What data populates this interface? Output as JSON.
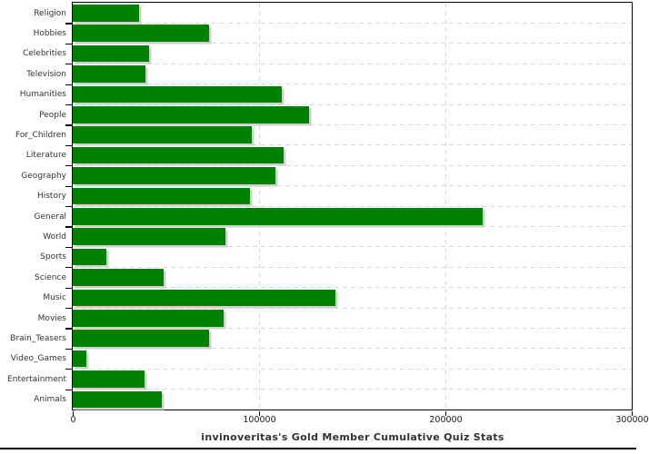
{
  "chart_data": {
    "type": "bar",
    "orientation": "horizontal",
    "title": "invinoveritas's Gold Member Cumulative Quiz Stats",
    "categories": [
      "Religion",
      "Hobbies",
      "Celebrities",
      "Television",
      "Humanities",
      "People",
      "For_Children",
      "Literature",
      "Geography",
      "History",
      "General",
      "World",
      "Sports",
      "Science",
      "Music",
      "Movies",
      "Brain_Teasers",
      "Video_Games",
      "Entertainment",
      "Animals"
    ],
    "values": [
      35500,
      73000,
      41000,
      39000,
      112000,
      127000,
      96000,
      113000,
      109000,
      95000,
      220000,
      82000,
      18000,
      49000,
      141000,
      81000,
      73000,
      7500,
      38500,
      48000
    ],
    "xlim": [
      0,
      300000
    ],
    "x_ticks": [
      0,
      100000,
      200000,
      300000
    ],
    "x_tick_labels": [
      "0",
      "100000",
      "200000",
      "300000"
    ],
    "grid": "dashed",
    "legend": "none",
    "bar_color": "#008000",
    "shadow_color": "#cfcfcf",
    "grid_color": "#d9d9d9",
    "axis_color": "#000000",
    "text_color": "#333333"
  }
}
